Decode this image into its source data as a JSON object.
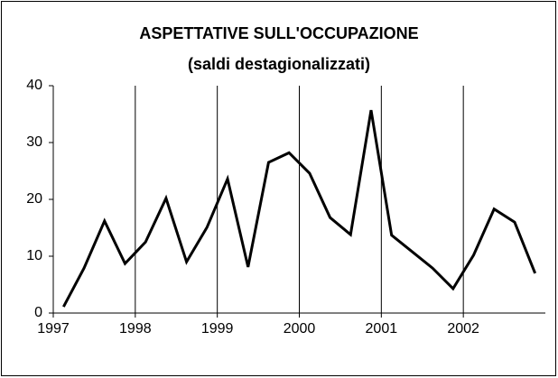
{
  "chart_data": {
    "type": "line",
    "title": "ASPETTATIVE SULL'OCCUPAZIONE",
    "subtitle": "(saldi destagionalizzati)",
    "x": [
      1997.125,
      1997.375,
      1997.625,
      1997.875,
      1998.125,
      1998.375,
      1998.625,
      1998.875,
      1999.125,
      1999.375,
      1999.625,
      1999.875,
      2000.125,
      2000.375,
      2000.625,
      2000.875,
      2001.125,
      2001.375,
      2001.625,
      2001.875,
      2002.125,
      2002.375,
      2002.625,
      2002.875
    ],
    "values": [
      1.1,
      7.9,
      16.2,
      8.7,
      12.5,
      20.2,
      9.0,
      15.1,
      23.6,
      8.1,
      26.5,
      28.2,
      24.6,
      16.8,
      13.8,
      35.7,
      13.7,
      10.8,
      7.9,
      4.3,
      10.2,
      18.3,
      16.0,
      7.0
    ],
    "color": "#000000",
    "xlim": [
      1997,
      2003
    ],
    "xticks": [
      1997,
      1998,
      1999,
      2000,
      2001,
      2002
    ],
    "ylim": [
      0,
      40
    ],
    "yticks": [
      0,
      10,
      20,
      30,
      40
    ],
    "grid": true
  }
}
